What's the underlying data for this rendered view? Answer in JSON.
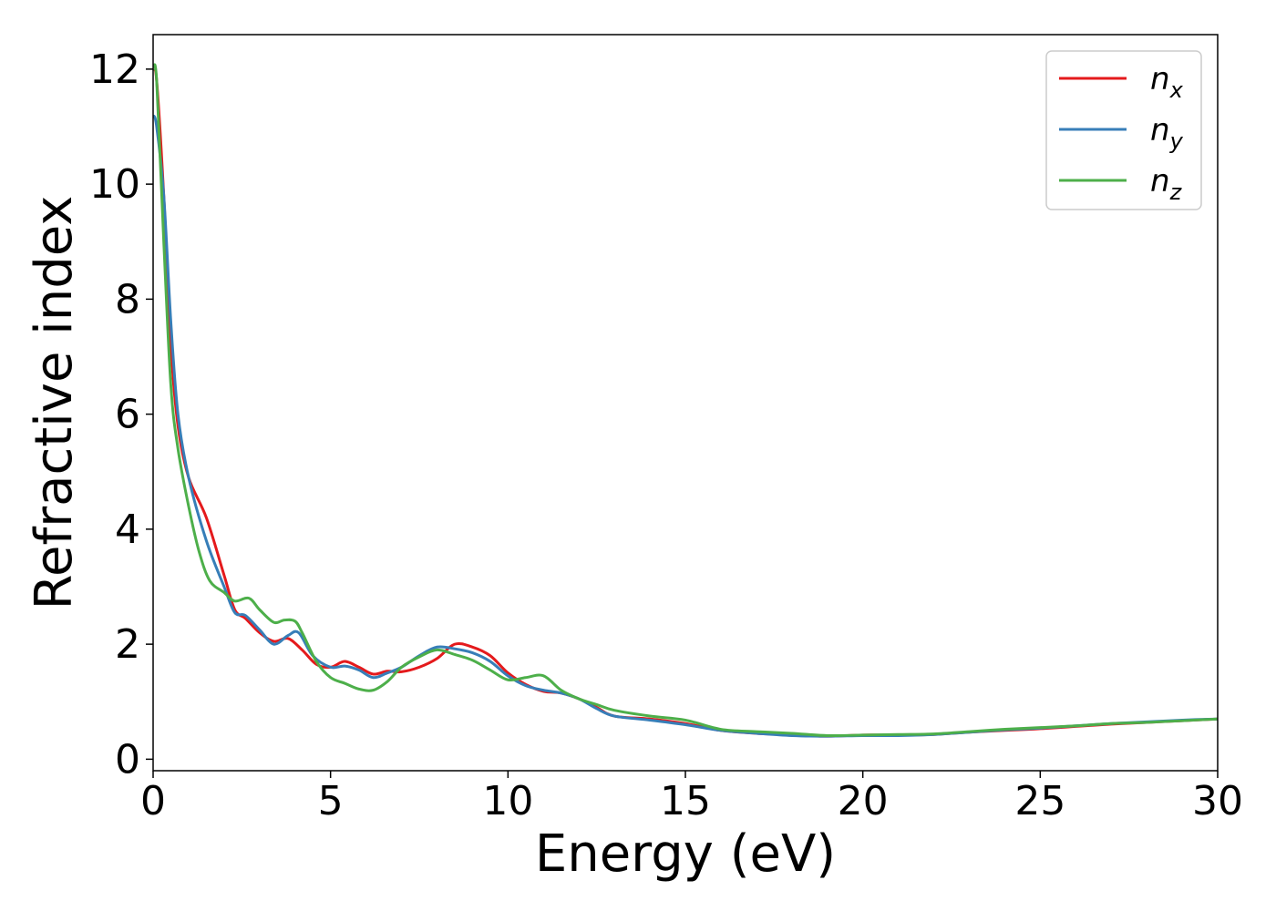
{
  "chart_data": {
    "type": "line",
    "xlabel": "Energy (eV)",
    "ylabel": "Refractive index",
    "xlim": [
      0,
      30
    ],
    "ylim": [
      -0.2,
      12.6
    ],
    "xticks": [
      0,
      5,
      10,
      15,
      20,
      25,
      30
    ],
    "yticks": [
      0,
      2,
      4,
      6,
      8,
      10,
      12
    ],
    "grid": false,
    "legend_position": "top-right",
    "series": [
      {
        "name": "n",
        "sub": "x",
        "color": "#e41a1c",
        "x": [
          0,
          0.1,
          0.3,
          0.5,
          0.7,
          1.0,
          1.5,
          2.0,
          2.3,
          2.6,
          3.0,
          3.4,
          3.8,
          4.2,
          4.6,
          5.0,
          5.4,
          5.8,
          6.2,
          6.6,
          7.0,
          7.5,
          8.0,
          8.5,
          9.0,
          9.5,
          10.0,
          10.5,
          11.0,
          11.5,
          12.0,
          12.5,
          13.0,
          14.0,
          15.0,
          16.0,
          17.0,
          18.0,
          19.0,
          20.0,
          21.0,
          22.0,
          23.0,
          24.0,
          25.0,
          26.0,
          27.0,
          28.0,
          29.0,
          30.0
        ],
        "y": [
          12.0,
          11.8,
          9.8,
          7.2,
          5.8,
          4.9,
          4.2,
          3.2,
          2.6,
          2.45,
          2.2,
          2.05,
          2.1,
          1.9,
          1.65,
          1.6,
          1.7,
          1.6,
          1.48,
          1.53,
          1.52,
          1.6,
          1.75,
          2.0,
          1.95,
          1.8,
          1.5,
          1.3,
          1.18,
          1.15,
          1.05,
          0.9,
          0.75,
          0.7,
          0.62,
          0.5,
          0.45,
          0.42,
          0.4,
          0.42,
          0.42,
          0.43,
          0.47,
          0.5,
          0.53,
          0.57,
          0.61,
          0.64,
          0.67,
          0.7
        ]
      },
      {
        "name": "n",
        "sub": "y",
        "color": "#377eb8",
        "x": [
          0,
          0.1,
          0.3,
          0.5,
          0.7,
          1.0,
          1.5,
          2.0,
          2.3,
          2.6,
          3.0,
          3.4,
          3.8,
          4.1,
          4.5,
          5.0,
          5.4,
          5.8,
          6.2,
          6.6,
          7.0,
          7.5,
          8.0,
          8.5,
          9.0,
          9.5,
          10.0,
          10.5,
          11.0,
          11.5,
          12.0,
          12.5,
          13.0,
          14.0,
          15.0,
          16.0,
          17.0,
          18.0,
          19.0,
          20.0,
          21.0,
          22.0,
          23.0,
          24.0,
          25.0,
          26.0,
          27.0,
          28.0,
          29.0,
          30.0
        ],
        "y": [
          11.2,
          11.0,
          9.8,
          7.6,
          6.0,
          4.9,
          3.8,
          3.0,
          2.55,
          2.5,
          2.25,
          2.0,
          2.15,
          2.2,
          1.8,
          1.6,
          1.62,
          1.55,
          1.42,
          1.5,
          1.6,
          1.8,
          1.95,
          1.92,
          1.85,
          1.7,
          1.45,
          1.28,
          1.2,
          1.15,
          1.05,
          0.88,
          0.75,
          0.68,
          0.6,
          0.5,
          0.45,
          0.41,
          0.4,
          0.41,
          0.41,
          0.43,
          0.47,
          0.51,
          0.54,
          0.58,
          0.62,
          0.65,
          0.68,
          0.7
        ]
      },
      {
        "name": "n",
        "sub": "z",
        "color": "#4daf4a",
        "x": [
          0,
          0.1,
          0.3,
          0.5,
          0.7,
          1.0,
          1.3,
          1.6,
          2.0,
          2.3,
          2.7,
          3.0,
          3.4,
          3.7,
          4.0,
          4.2,
          4.6,
          5.0,
          5.4,
          5.8,
          6.2,
          6.6,
          7.0,
          7.5,
          8.0,
          8.5,
          9.0,
          9.5,
          10.0,
          10.5,
          11.0,
          11.5,
          12.0,
          12.5,
          13.0,
          14.0,
          15.0,
          16.0,
          17.0,
          18.0,
          19.0,
          20.0,
          21.0,
          22.0,
          23.0,
          24.0,
          25.0,
          26.0,
          27.0,
          28.0,
          29.0,
          30.0
        ],
        "y": [
          12.0,
          11.8,
          9.0,
          6.5,
          5.4,
          4.4,
          3.6,
          3.1,
          2.9,
          2.75,
          2.8,
          2.6,
          2.38,
          2.42,
          2.4,
          2.2,
          1.7,
          1.42,
          1.32,
          1.22,
          1.2,
          1.35,
          1.6,
          1.78,
          1.9,
          1.82,
          1.72,
          1.55,
          1.38,
          1.42,
          1.45,
          1.2,
          1.05,
          0.95,
          0.85,
          0.75,
          0.68,
          0.52,
          0.48,
          0.45,
          0.41,
          0.42,
          0.43,
          0.44,
          0.48,
          0.52,
          0.55,
          0.58,
          0.62,
          0.64,
          0.67,
          0.7
        ]
      }
    ]
  }
}
